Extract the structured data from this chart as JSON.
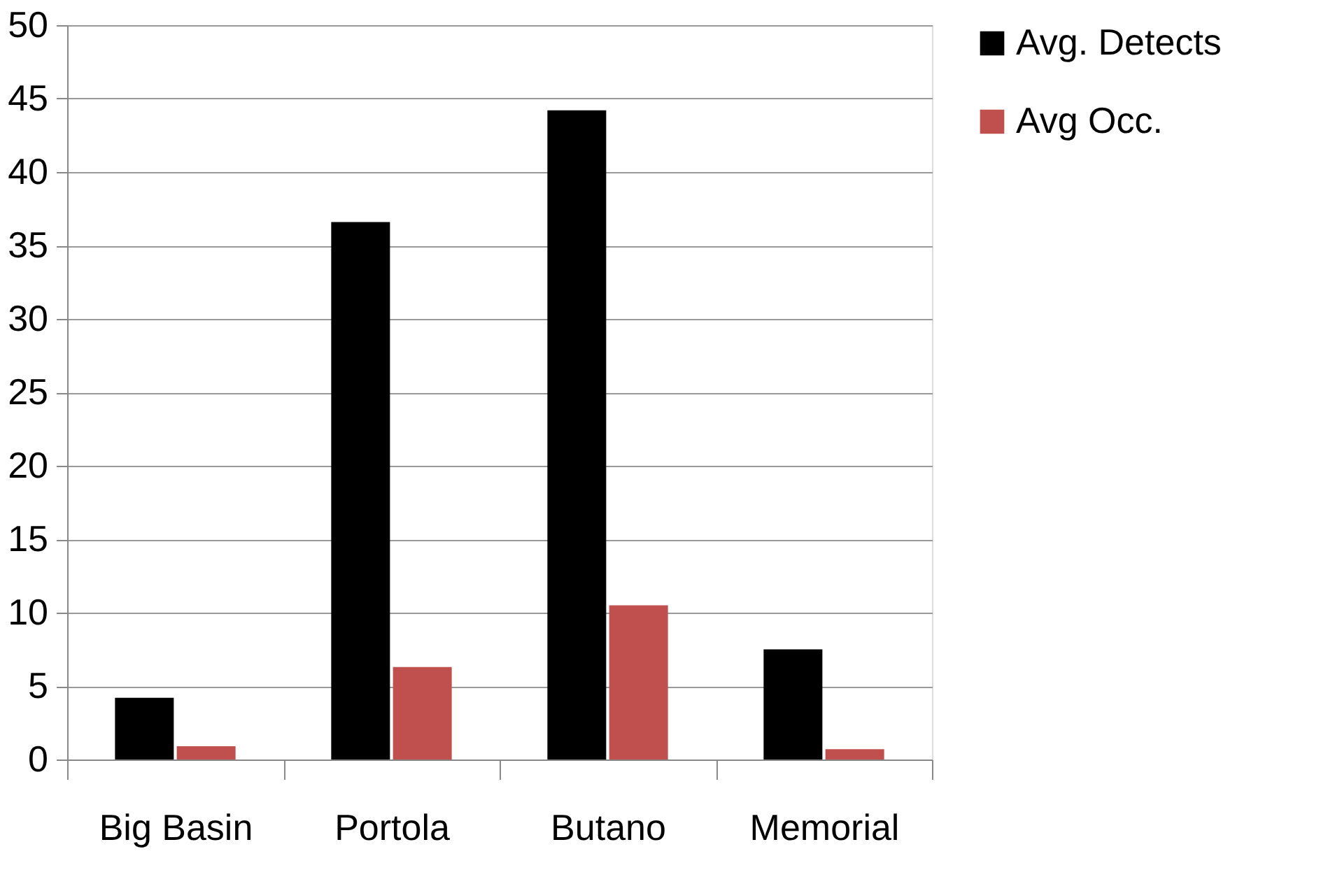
{
  "chart_data": {
    "type": "bar",
    "categories": [
      "Big Basin",
      "Portola",
      "Butano",
      "Memorial"
    ],
    "series": [
      {
        "name": "Avg. Detects",
        "color": "#000000",
        "values": [
          4.2,
          36.6,
          44.2,
          7.5
        ]
      },
      {
        "name": "Avg Occ.",
        "color": "#c0504d",
        "values": [
          0.9,
          6.3,
          10.5,
          0.7
        ]
      }
    ],
    "ylim": [
      0,
      50
    ],
    "yticks": [
      0,
      5,
      10,
      15,
      20,
      25,
      30,
      35,
      40,
      45,
      50
    ],
    "grid": "y",
    "legend": "right"
  }
}
